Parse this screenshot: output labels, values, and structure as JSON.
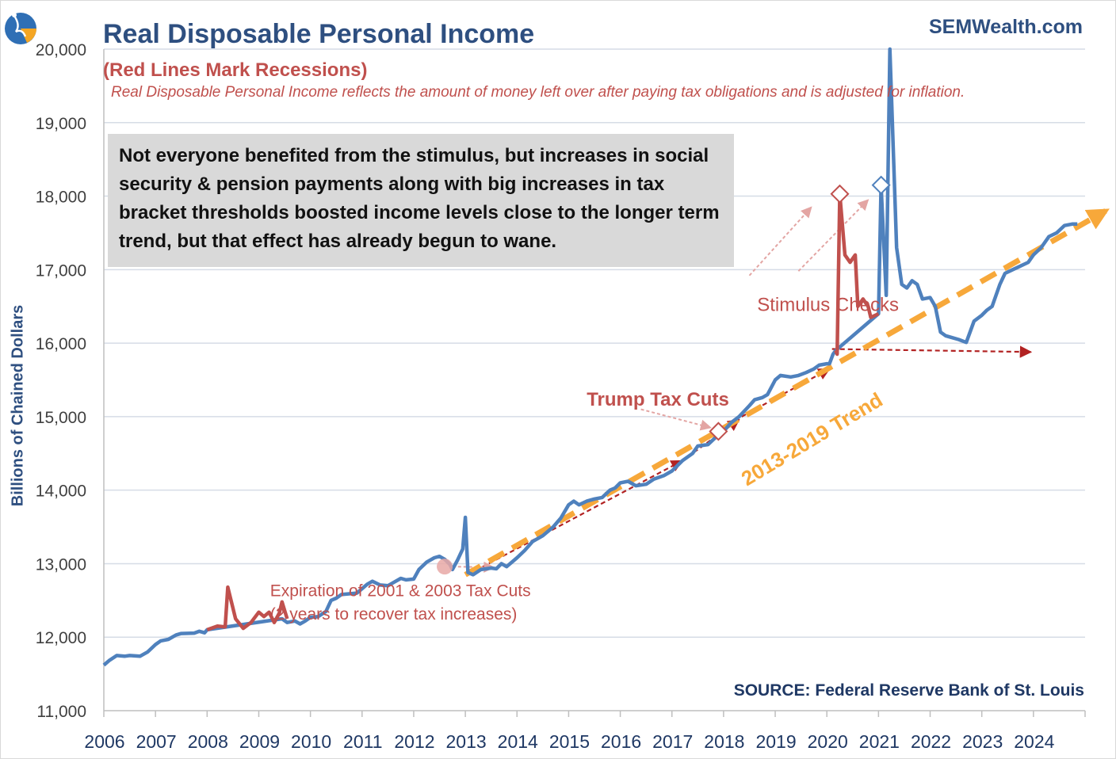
{
  "brand": "SEMWealth.com",
  "source": "SOURCE:  Federal Reserve Bank of St. Louis",
  "callout": "Not everyone benefited from the stimulus, but increases in social security & pension payments along with big increases in tax bracket thresholds boosted income levels close to the longer term trend, but that effect has already begun to wane.",
  "annotations": {
    "stimulus": "Stimulus Checks",
    "trump": "Trump Tax Cuts",
    "expiration_1": "Expiration of 2001 & 2003 Tax Cuts",
    "expiration_2": "(2 years to recover tax increases)",
    "trend": "2013-2019 Trend"
  },
  "colors": {
    "series": "#4f81bd",
    "recession": "#c0504d",
    "trend": "#f7a83a",
    "arrow": "#b22222",
    "title": "#2e4f80"
  },
  "chart_data": {
    "type": "line",
    "title": "Real Disposable Personal Income",
    "subtitle": "(Red Lines Mark Recessions)",
    "description": "Real Disposable Personal Income reflects the amount of money left over after paying tax obligations and is adjusted for inflation.",
    "ylabel": "Billions of Chained Dollars",
    "xlabel": "",
    "xlim": [
      2006,
      2025
    ],
    "ylim": [
      11000,
      20000
    ],
    "yticks": [
      "11,000",
      "12,000",
      "13,000",
      "14,000",
      "15,000",
      "16,000",
      "17,000",
      "18,000",
      "19,000",
      "20,000"
    ],
    "xticks": [
      "2006",
      "2007",
      "2008",
      "2009",
      "2010",
      "2011",
      "2012",
      "2013",
      "2014",
      "2015",
      "2016",
      "2017",
      "2018",
      "2019",
      "2020",
      "2021",
      "2022",
      "2023",
      "2024"
    ],
    "legend": "none",
    "grid": true,
    "series": [
      {
        "points": [
          [
            2006.0,
            11620
          ],
          [
            2006.1,
            11680
          ],
          [
            2006.25,
            11750
          ],
          [
            2006.4,
            11740
          ],
          [
            2006.5,
            11750
          ],
          [
            2006.7,
            11740
          ],
          [
            2006.85,
            11800
          ],
          [
            2007.0,
            11900
          ],
          [
            2007.1,
            11950
          ],
          [
            2007.25,
            11970
          ],
          [
            2007.4,
            12030
          ],
          [
            2007.5,
            12050
          ],
          [
            2007.75,
            12055
          ],
          [
            2007.85,
            12080
          ],
          [
            2007.95,
            12060
          ],
          [
            2008.0,
            12100
          ],
          [
            2009.45,
            12250
          ],
          [
            2009.55,
            12200
          ],
          [
            2009.7,
            12220
          ],
          [
            2009.8,
            12180
          ],
          [
            2009.9,
            12220
          ],
          [
            2010.0,
            12270
          ],
          [
            2010.15,
            12280
          ],
          [
            2010.3,
            12350
          ],
          [
            2010.4,
            12500
          ],
          [
            2010.5,
            12530
          ],
          [
            2010.6,
            12580
          ],
          [
            2010.75,
            12590
          ],
          [
            2010.9,
            12600
          ],
          [
            2011.0,
            12660
          ],
          [
            2011.1,
            12720
          ],
          [
            2011.2,
            12760
          ],
          [
            2011.35,
            12710
          ],
          [
            2011.5,
            12700
          ],
          [
            2011.6,
            12740
          ],
          [
            2011.75,
            12800
          ],
          [
            2011.85,
            12780
          ],
          [
            2012.0,
            12790
          ],
          [
            2012.1,
            12920
          ],
          [
            2012.25,
            13020
          ],
          [
            2012.4,
            13080
          ],
          [
            2012.5,
            13100
          ],
          [
            2012.6,
            13060
          ],
          [
            2012.7,
            12990
          ],
          [
            2012.75,
            12920
          ],
          [
            2012.85,
            13050
          ],
          [
            2012.95,
            13200
          ],
          [
            2013.0,
            13630
          ],
          [
            2013.05,
            12880
          ],
          [
            2013.15,
            12850
          ],
          [
            2013.3,
            12920
          ],
          [
            2013.5,
            12940
          ],
          [
            2013.6,
            12930
          ],
          [
            2013.7,
            13000
          ],
          [
            2013.8,
            12960
          ],
          [
            2014.0,
            13080
          ],
          [
            2014.15,
            13180
          ],
          [
            2014.3,
            13300
          ],
          [
            2014.5,
            13380
          ],
          [
            2014.7,
            13500
          ],
          [
            2014.85,
            13620
          ],
          [
            2015.0,
            13800
          ],
          [
            2015.1,
            13850
          ],
          [
            2015.2,
            13800
          ],
          [
            2015.35,
            13850
          ],
          [
            2015.5,
            13880
          ],
          [
            2015.65,
            13900
          ],
          [
            2015.8,
            14000
          ],
          [
            2015.9,
            14030
          ],
          [
            2016.0,
            14100
          ],
          [
            2016.15,
            14120
          ],
          [
            2016.3,
            14060
          ],
          [
            2016.5,
            14080
          ],
          [
            2016.65,
            14150
          ],
          [
            2016.85,
            14200
          ],
          [
            2017.0,
            14260
          ],
          [
            2017.2,
            14400
          ],
          [
            2017.4,
            14500
          ],
          [
            2017.5,
            14600
          ],
          [
            2017.7,
            14620
          ],
          [
            2017.85,
            14720
          ],
          [
            2018.0,
            14800
          ],
          [
            2018.15,
            14920
          ],
          [
            2018.3,
            15000
          ],
          [
            2018.5,
            15150
          ],
          [
            2018.6,
            15230
          ],
          [
            2018.75,
            15260
          ],
          [
            2018.85,
            15300
          ],
          [
            2019.0,
            15500
          ],
          [
            2019.1,
            15560
          ],
          [
            2019.3,
            15540
          ],
          [
            2019.45,
            15560
          ],
          [
            2019.6,
            15600
          ],
          [
            2019.75,
            15650
          ],
          [
            2019.85,
            15700
          ],
          [
            2020.0,
            15720
          ],
          [
            2020.05,
            15720
          ],
          [
            2020.12,
            15850
          ],
          [
            2020.17,
            15900
          ],
          [
            2021.0,
            16400
          ],
          [
            2021.05,
            18150
          ],
          [
            2021.15,
            16650
          ],
          [
            2021.22,
            20000
          ],
          [
            2021.35,
            17300
          ],
          [
            2021.45,
            16800
          ],
          [
            2021.55,
            16750
          ],
          [
            2021.65,
            16850
          ],
          [
            2021.75,
            16800
          ],
          [
            2021.85,
            16600
          ],
          [
            2022.0,
            16620
          ],
          [
            2022.1,
            16500
          ],
          [
            2022.2,
            16150
          ],
          [
            2022.3,
            16100
          ],
          [
            2022.4,
            16080
          ],
          [
            2022.55,
            16050
          ],
          [
            2022.7,
            16010
          ],
          [
            2022.85,
            16300
          ],
          [
            2023.0,
            16380
          ],
          [
            2023.1,
            16450
          ],
          [
            2023.2,
            16500
          ],
          [
            2023.35,
            16800
          ],
          [
            2023.45,
            16950
          ],
          [
            2023.6,
            17000
          ],
          [
            2023.75,
            17050
          ],
          [
            2023.9,
            17100
          ],
          [
            2024.0,
            17200
          ],
          [
            2024.15,
            17300
          ],
          [
            2024.3,
            17450
          ],
          [
            2024.45,
            17500
          ],
          [
            2024.6,
            17600
          ],
          [
            2024.75,
            17620
          ],
          [
            2024.85,
            17620
          ]
        ],
        "color": "#4f81bd"
      }
    ],
    "recessions": [
      {
        "points": [
          [
            2008.0,
            12100
          ],
          [
            2008.2,
            12150
          ],
          [
            2008.35,
            12140
          ],
          [
            2008.4,
            12680
          ],
          [
            2008.55,
            12250
          ],
          [
            2008.7,
            12120
          ],
          [
            2008.85,
            12200
          ],
          [
            2009.0,
            12340
          ],
          [
            2009.1,
            12280
          ],
          [
            2009.2,
            12340
          ],
          [
            2009.3,
            12200
          ],
          [
            2009.4,
            12330
          ],
          [
            2009.45,
            12480
          ],
          [
            2009.55,
            12250
          ]
        ]
      },
      {
        "points": [
          [
            2020.17,
            15900
          ],
          [
            2020.2,
            15850
          ],
          [
            2020.25,
            18030
          ],
          [
            2020.35,
            17200
          ],
          [
            2020.45,
            17100
          ],
          [
            2020.55,
            17200
          ],
          [
            2020.6,
            16500
          ],
          [
            2020.7,
            16600
          ],
          [
            2020.8,
            16500
          ],
          [
            2020.85,
            16350
          ],
          [
            2021.0,
            16400
          ]
        ]
      }
    ],
    "trend": {
      "label": "2013-2019 Trend",
      "from": [
        2013.0,
        12850
      ],
      "to": [
        2025.4,
        17800
      ]
    },
    "markers": [
      {
        "label": "Trump Tax Cuts",
        "point": [
          2017.9,
          14800
        ],
        "color": "#c0504d"
      },
      {
        "label": "Stimulus Checks",
        "point": [
          2020.25,
          18030
        ],
        "color": "#c0504d"
      },
      {
        "label": "Stimulus Checks",
        "point": [
          2021.05,
          18150
        ],
        "color": "#4f81bd"
      }
    ],
    "expiration_marker": [
      2012.6,
      12960
    ]
  }
}
